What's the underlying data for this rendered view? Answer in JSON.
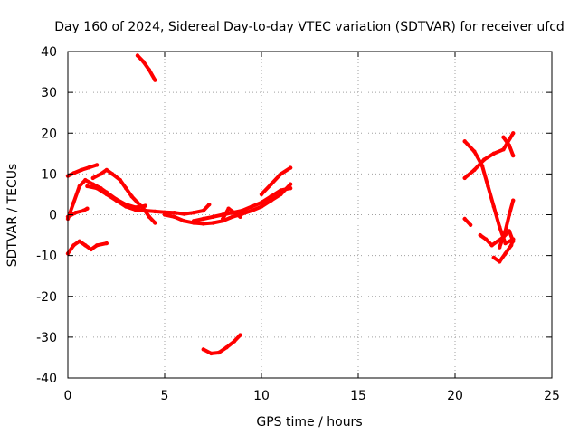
{
  "chart_data": {
    "type": "scatter",
    "title": "Day 160 of 2024, Sidereal Day-to-day VTEC variation (SDTVAR) for receiver ufcd",
    "xlabel": "GPS time / hours",
    "ylabel": "SDTVAR / TECUs",
    "xlim": [
      0,
      25
    ],
    "ylim": [
      -40,
      40
    ],
    "xticks": [
      0,
      5,
      10,
      15,
      20,
      25
    ],
    "yticks": [
      -40,
      -30,
      -20,
      -10,
      0,
      10,
      20,
      30,
      40
    ],
    "grid": true,
    "color": "#ff0000",
    "series": [
      {
        "name": "s1",
        "points": [
          [
            0.0,
            9.5
          ],
          [
            0.3,
            10.2
          ],
          [
            0.7,
            11.0
          ],
          [
            1.1,
            11.6
          ],
          [
            1.5,
            12.2
          ]
        ]
      },
      {
        "name": "s2",
        "points": [
          [
            0.0,
            -1.0
          ],
          [
            0.3,
            3.0
          ],
          [
            0.6,
            7.0
          ],
          [
            0.9,
            8.5
          ],
          [
            1.3,
            7.5
          ],
          [
            1.7,
            6.5
          ],
          [
            2.0,
            5.5
          ],
          [
            2.5,
            3.8
          ],
          [
            3.0,
            2.5
          ],
          [
            3.5,
            1.8
          ],
          [
            4.0,
            2.2
          ]
        ]
      },
      {
        "name": "s3",
        "points": [
          [
            0.0,
            -0.5
          ],
          [
            0.4,
            0.5
          ],
          [
            0.8,
            1.0
          ],
          [
            1.0,
            1.5
          ]
        ]
      },
      {
        "name": "s4",
        "points": [
          [
            0.0,
            -9.5
          ],
          [
            0.3,
            -7.5
          ],
          [
            0.6,
            -6.5
          ],
          [
            0.9,
            -7.5
          ],
          [
            1.2,
            -8.5
          ],
          [
            1.5,
            -7.5
          ],
          [
            2.0,
            -7.0
          ]
        ]
      },
      {
        "name": "s5",
        "points": [
          [
            1.3,
            9.0
          ],
          [
            1.7,
            10.0
          ],
          [
            2.0,
            11.0
          ],
          [
            2.3,
            10.0
          ],
          [
            2.7,
            8.5
          ],
          [
            3.0,
            6.5
          ],
          [
            3.3,
            4.5
          ],
          [
            3.6,
            3.0
          ],
          [
            3.9,
            1.5
          ],
          [
            4.2,
            -0.5
          ],
          [
            4.5,
            -2.0
          ]
        ]
      },
      {
        "name": "s6",
        "points": [
          [
            1.0,
            7.0
          ],
          [
            1.5,
            6.5
          ],
          [
            2.0,
            5.0
          ],
          [
            2.5,
            3.5
          ],
          [
            3.0,
            2.0
          ],
          [
            3.5,
            1.2
          ],
          [
            4.0,
            1.0
          ],
          [
            4.5,
            0.8
          ],
          [
            5.0,
            0.6
          ],
          [
            5.5,
            0.5
          ],
          [
            6.0,
            0.2
          ],
          [
            6.5,
            0.5
          ],
          [
            7.0,
            1.0
          ],
          [
            7.3,
            2.5
          ]
        ]
      },
      {
        "name": "s7",
        "points": [
          [
            5.0,
            0.0
          ],
          [
            5.5,
            -0.5
          ],
          [
            6.0,
            -1.5
          ],
          [
            6.5,
            -2.0
          ],
          [
            7.0,
            -2.2
          ],
          [
            7.5,
            -2.0
          ],
          [
            8.0,
            -1.5
          ],
          [
            8.5,
            -0.5
          ],
          [
            9.0,
            0.2
          ],
          [
            9.5,
            1.0
          ],
          [
            10.0,
            2.0
          ],
          [
            10.5,
            3.5
          ],
          [
            11.0,
            5.0
          ],
          [
            11.5,
            7.5
          ]
        ]
      },
      {
        "name": "s8",
        "points": [
          [
            6.5,
            -1.5
          ],
          [
            7.0,
            -1.0
          ],
          [
            7.5,
            -0.5
          ],
          [
            8.0,
            0.0
          ],
          [
            8.5,
            0.5
          ],
          [
            9.0,
            1.0
          ],
          [
            9.5,
            2.0
          ],
          [
            10.0,
            3.0
          ],
          [
            10.5,
            4.5
          ],
          [
            11.0,
            6.0
          ],
          [
            11.5,
            6.5
          ]
        ]
      },
      {
        "name": "s9",
        "points": [
          [
            8.0,
            -1.0
          ],
          [
            8.3,
            1.5
          ],
          [
            8.6,
            0.5
          ],
          [
            8.9,
            -0.5
          ]
        ]
      },
      {
        "name": "s10",
        "points": [
          [
            10.0,
            5.0
          ],
          [
            10.5,
            7.5
          ],
          [
            11.0,
            10.0
          ],
          [
            11.5,
            11.5
          ]
        ]
      },
      {
        "name": "s11",
        "points": [
          [
            3.6,
            39.0
          ],
          [
            3.9,
            37.5
          ],
          [
            4.2,
            35.5
          ],
          [
            4.5,
            33.0
          ]
        ]
      },
      {
        "name": "s12",
        "points": [
          [
            7.0,
            -33.0
          ],
          [
            7.4,
            -34.0
          ],
          [
            7.8,
            -33.8
          ],
          [
            8.2,
            -32.5
          ],
          [
            8.6,
            -31.0
          ],
          [
            8.9,
            -29.5
          ]
        ]
      },
      {
        "name": "s13",
        "points": [
          [
            20.5,
            9.0
          ],
          [
            21.0,
            11.0
          ],
          [
            21.5,
            13.5
          ],
          [
            22.0,
            15.0
          ],
          [
            22.5,
            16.0
          ],
          [
            23.0,
            20.0
          ]
        ]
      },
      {
        "name": "s14",
        "points": [
          [
            20.5,
            18.0
          ],
          [
            21.0,
            15.5
          ],
          [
            21.4,
            12.0
          ],
          [
            21.7,
            7.0
          ],
          [
            22.0,
            2.0
          ],
          [
            22.3,
            -3.0
          ],
          [
            22.6,
            -7.0
          ],
          [
            23.0,
            -6.0
          ]
        ]
      },
      {
        "name": "s15",
        "points": [
          [
            22.5,
            19.0
          ],
          [
            22.8,
            17.0
          ],
          [
            23.0,
            14.5
          ]
        ]
      },
      {
        "name": "s16",
        "points": [
          [
            20.5,
            -1.0
          ],
          [
            20.8,
            -2.5
          ]
        ]
      },
      {
        "name": "s17",
        "points": [
          [
            21.3,
            -5.0
          ],
          [
            21.6,
            -6.0
          ],
          [
            21.9,
            -7.5
          ],
          [
            22.2,
            -6.5
          ],
          [
            22.5,
            -5.5
          ],
          [
            22.8,
            -4.0
          ],
          [
            23.0,
            -6.5
          ]
        ]
      },
      {
        "name": "s18",
        "points": [
          [
            22.0,
            -10.5
          ],
          [
            22.3,
            -11.5
          ],
          [
            22.6,
            -9.5
          ],
          [
            22.9,
            -7.5
          ],
          [
            23.0,
            -6.0
          ]
        ]
      },
      {
        "name": "s19",
        "points": [
          [
            22.3,
            -8.0
          ],
          [
            22.6,
            -4.0
          ],
          [
            22.8,
            0.0
          ],
          [
            23.0,
            3.5
          ]
        ]
      }
    ]
  }
}
